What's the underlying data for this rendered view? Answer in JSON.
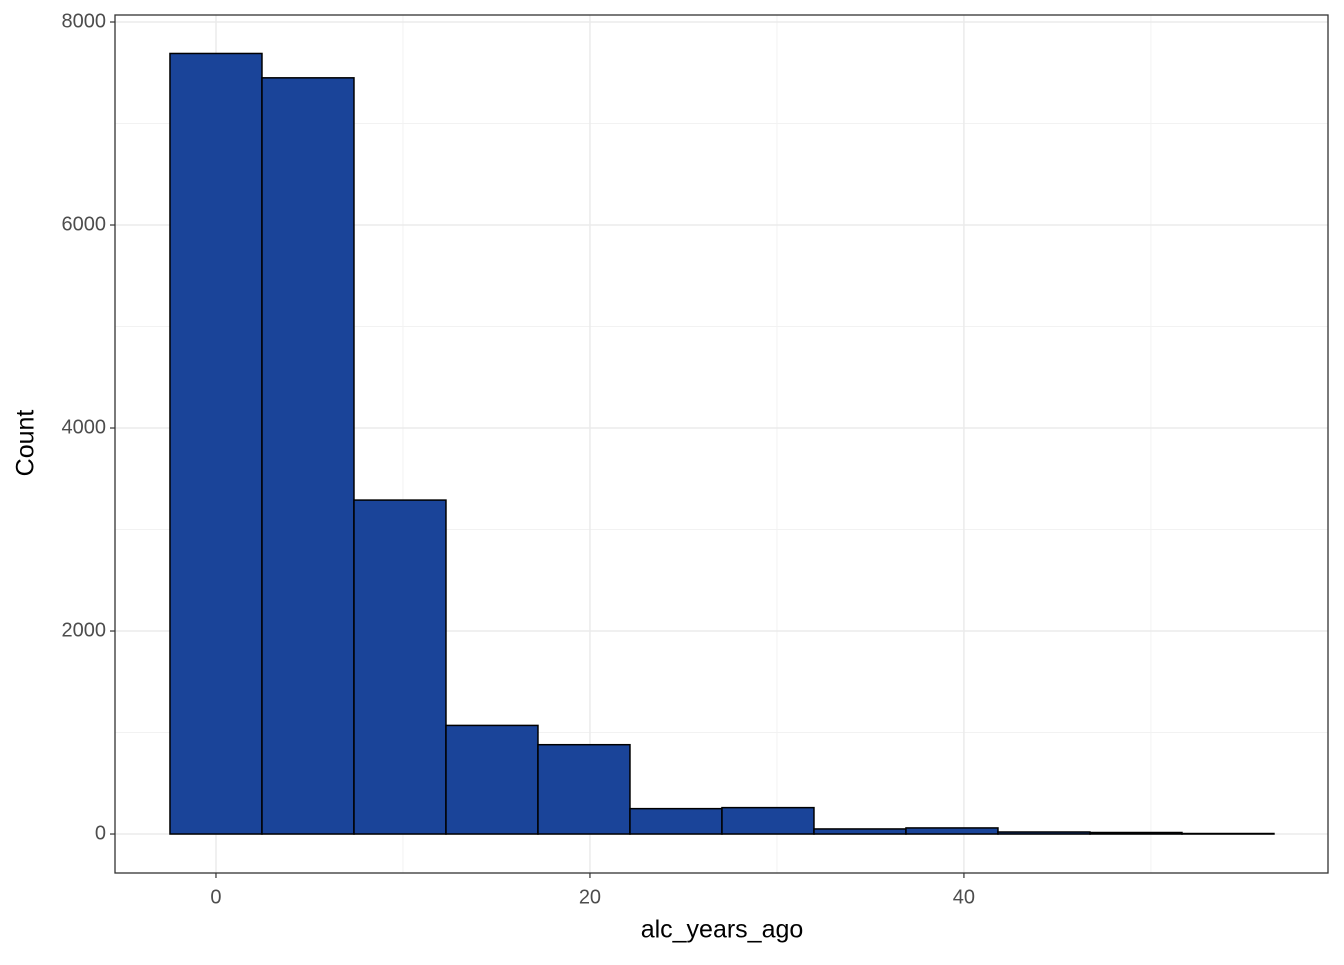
{
  "chart_data": {
    "type": "histogram",
    "x_label": "alc_years_ago",
    "y_label": "Count",
    "bins": [
      -2.46,
      2.46,
      7.38,
      12.3,
      17.22,
      22.14,
      27.06,
      31.98,
      36.9,
      41.82,
      46.74,
      51.66,
      56.58
    ],
    "values": [
      7690,
      7450,
      3290,
      1070,
      880,
      250,
      260,
      50,
      60,
      20,
      15,
      5
    ],
    "color": "#1a4499",
    "edge_color": "#000000",
    "xlim": [
      -5.4,
      59.47
    ],
    "ylim": [
      -384,
      8069
    ],
    "xticks": [
      0,
      20,
      40
    ],
    "yticks": [
      0,
      2000,
      4000,
      6000,
      8000
    ],
    "grid": true
  }
}
